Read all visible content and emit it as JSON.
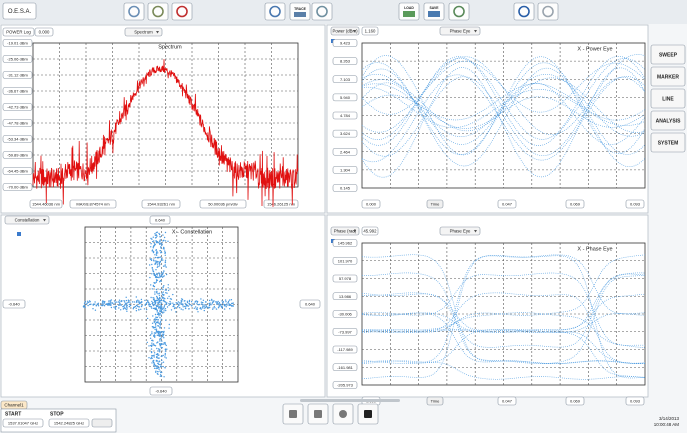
{
  "toolbar": {
    "title": "O.E.S.A.",
    "trace": "TRACE",
    "load": "LOAD",
    "save": "SAVE"
  },
  "spectrum": {
    "mode": "POWER Log",
    "value": "0.000",
    "selector": "Spectrum",
    "title": "Spectrum",
    "y_labels": [
      "-19.01 dBm",
      "-25.06 dBm",
      "-31.12 dBm",
      "-36.67 dBm",
      "-42.73 dBm",
      "-47.78 dBm",
      "-53.34 dBm",
      "-59.89 dBm",
      "-64.45 dBm",
      "-70.00 dBm"
    ],
    "x_labels": [
      "1544.46036 nm",
      "MAX/8.874574 nm",
      "1544.93261 nm",
      "50.00036 pm/div",
      "1546.26125 nm"
    ]
  },
  "power_eye": {
    "selector": "Power (dBm)",
    "value": "1.160",
    "view": "Phase Eye",
    "title": "X - Power Eye",
    "y_labels": [
      "9.423",
      "8.263",
      "7.103",
      "5.940",
      "4.784",
      "3.624",
      "2.464",
      "1.304",
      "0.145"
    ],
    "x_labels": [
      "0.000",
      "Time",
      "0.047",
      "0.069",
      "0.093"
    ]
  },
  "constellation": {
    "selector": "Constellation",
    "title": "X - Constellation",
    "top": "0.640",
    "left": "-0.640",
    "right": "0.640",
    "bottom": "-0.640"
  },
  "phase_eye": {
    "selector": "Phase (rad)",
    "value": "45.992",
    "view": "Phase Eye",
    "title": "X - Phase Eye",
    "y_labels": [
      "145.962",
      "101.970",
      "57.978",
      "13.986",
      "-30.006",
      "-73.997",
      "-117.989",
      "-161.981",
      "-205.973"
    ],
    "x_labels": [
      "0.000",
      "Time",
      "0.047",
      "0.069",
      "0.093"
    ]
  },
  "side_menu": [
    "SWEEP",
    "MARKER",
    "LINE",
    "ANALYSIS",
    "SYSTEM"
  ],
  "footer": {
    "tab": "Channel1",
    "start_label": "START",
    "start": "1537.01047 GHz",
    "stop_label": "STOP",
    "stop": "1542.24825 GHz",
    "date": "3/14/2013",
    "time": "10:00:48 AM"
  }
}
